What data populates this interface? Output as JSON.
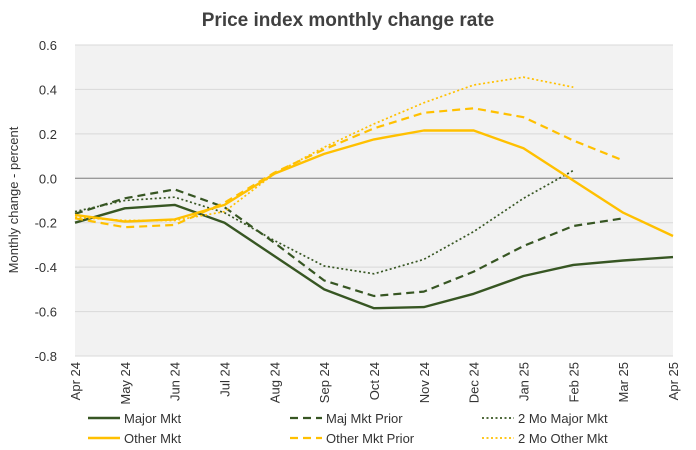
{
  "chart_data": {
    "type": "line",
    "title": "Price index monthly change rate",
    "xlabel": "",
    "ylabel": "Monthly change - percent",
    "ylim": [
      -0.8,
      0.6
    ],
    "yticks": [
      0.6,
      0.4,
      0.2,
      0.0,
      -0.2,
      -0.4,
      -0.6,
      -0.8
    ],
    "ytick_labels": [
      "0.6",
      "0.4",
      "0.2",
      "0.0",
      "-0.2",
      "-0.4",
      "-0.6",
      "-0.8"
    ],
    "grid": true,
    "legend_position": "bottom",
    "categories": [
      "Apr 24",
      "May 24",
      "Jun 24",
      "Jul 24",
      "Aug 24",
      "Sep 24",
      "Oct 24",
      "Nov 24",
      "Dec 24",
      "Jan 25",
      "Feb 25",
      "Mar 25",
      "Apr 25"
    ],
    "series": [
      {
        "name": "Major Mkt",
        "color": "#375623",
        "dash": "solid",
        "values": [
          -0.2,
          -0.135,
          -0.12,
          -0.2,
          -0.35,
          -0.5,
          -0.585,
          -0.58,
          -0.52,
          -0.44,
          -0.39,
          -0.37,
          -0.355
        ]
      },
      {
        "name": "Maj Mkt Prior",
        "color": "#375623",
        "dash": "dashed",
        "values": [
          -0.16,
          -0.09,
          -0.05,
          -0.13,
          -0.29,
          -0.46,
          -0.53,
          -0.51,
          -0.42,
          -0.305,
          -0.215,
          -0.18,
          null
        ]
      },
      {
        "name": "2 Mo Major Mkt",
        "color": "#375623",
        "dash": "dotted",
        "values": [
          -0.15,
          -0.1,
          -0.085,
          -0.155,
          -0.28,
          -0.395,
          -0.43,
          -0.365,
          -0.24,
          -0.09,
          0.035,
          null,
          null
        ]
      },
      {
        "name": "Other Mkt",
        "color": "#FFC000",
        "dash": "solid",
        "values": [
          -0.165,
          -0.195,
          -0.185,
          -0.12,
          0.02,
          0.11,
          0.175,
          0.215,
          0.215,
          0.135,
          -0.01,
          -0.155,
          -0.26
        ]
      },
      {
        "name": "Other Mkt Prior",
        "color": "#FFC000",
        "dash": "dashed",
        "values": [
          -0.18,
          -0.22,
          -0.21,
          -0.11,
          0.025,
          0.13,
          0.225,
          0.295,
          0.315,
          0.275,
          0.17,
          0.08,
          null
        ]
      },
      {
        "name": "2 Mo Other Mkt",
        "color": "#FFC000",
        "dash": "dotted",
        "values": [
          -0.175,
          -0.19,
          -0.19,
          -0.15,
          0.02,
          0.14,
          0.245,
          0.34,
          0.42,
          0.455,
          0.41,
          null,
          null
        ]
      }
    ]
  }
}
